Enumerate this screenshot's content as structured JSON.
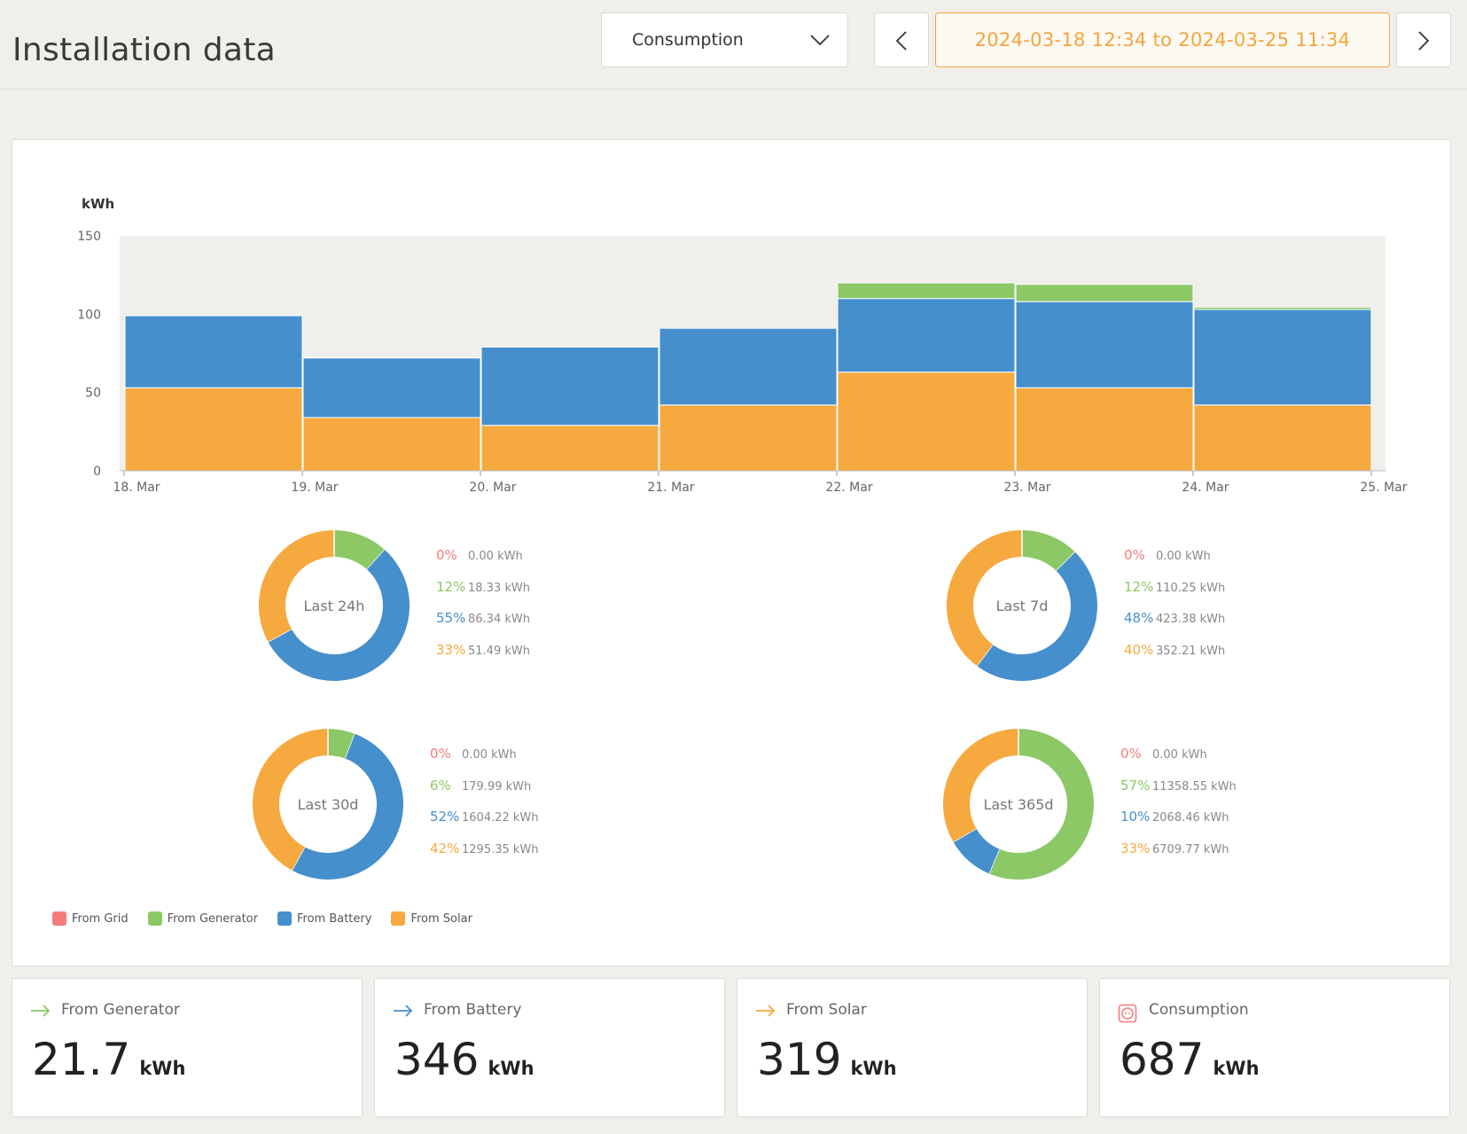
{
  "header": {
    "title": "Installation data",
    "select_label": "Consumption",
    "date_range": "2024-03-18 12:34 to 2024-03-25 11:34"
  },
  "colors": {
    "grid": "#f47c7c",
    "generator": "#8cc866",
    "battery": "#468fcd",
    "solar": "#f6a93f"
  },
  "chart_data": {
    "type": "bar",
    "stacked": true,
    "y_unit": "kWh",
    "ylim": [
      0,
      150
    ],
    "y_ticks": [
      "0",
      "50",
      "100",
      "150"
    ],
    "x_ticks": [
      "18. Mar",
      "19. Mar",
      "20. Mar",
      "21. Mar",
      "22. Mar",
      "23. Mar",
      "24. Mar",
      "25. Mar"
    ],
    "categories": [
      "18. Mar",
      "19. Mar",
      "20. Mar",
      "21. Mar",
      "22. Mar",
      "23. Mar",
      "24. Mar"
    ],
    "series": [
      {
        "name": "From Solar",
        "color_key": "solar",
        "values": [
          53,
          34,
          29,
          42,
          63,
          53,
          42
        ]
      },
      {
        "name": "From Battery",
        "color_key": "battery",
        "values": [
          46,
          38,
          50,
          49,
          47,
          55,
          61
        ]
      },
      {
        "name": "From Generator",
        "color_key": "generator",
        "values": [
          0,
          0,
          0,
          0,
          10,
          11,
          1.5
        ]
      },
      {
        "name": "From Grid",
        "color_key": "grid",
        "values": [
          0,
          0,
          0,
          0,
          0,
          0,
          0
        ]
      }
    ],
    "grid": false
  },
  "donuts": [
    {
      "label": "Last 24h",
      "stats": [
        {
          "key": "grid",
          "pct": "0%",
          "kwh": "0.00 kWh",
          "value": 0
        },
        {
          "key": "generator",
          "pct": "12%",
          "kwh": "18.33 kWh",
          "value": 18.33
        },
        {
          "key": "battery",
          "pct": "55%",
          "kwh": "86.34 kWh",
          "value": 86.34
        },
        {
          "key": "solar",
          "pct": "33%",
          "kwh": "51.49 kWh",
          "value": 51.49
        }
      ]
    },
    {
      "label": "Last 7d",
      "stats": [
        {
          "key": "grid",
          "pct": "0%",
          "kwh": "0.00 kWh",
          "value": 0
        },
        {
          "key": "generator",
          "pct": "12%",
          "kwh": "110.25 kWh",
          "value": 110.25
        },
        {
          "key": "battery",
          "pct": "48%",
          "kwh": "423.38 kWh",
          "value": 423.38
        },
        {
          "key": "solar",
          "pct": "40%",
          "kwh": "352.21 kWh",
          "value": 352.21
        }
      ]
    },
    {
      "label": "Last 30d",
      "stats": [
        {
          "key": "grid",
          "pct": "0%",
          "kwh": "0.00 kWh",
          "value": 0
        },
        {
          "key": "generator",
          "pct": "6%",
          "kwh": "179.99 kWh",
          "value": 179.99
        },
        {
          "key": "battery",
          "pct": "52%",
          "kwh": "1604.22 kWh",
          "value": 1604.22
        },
        {
          "key": "solar",
          "pct": "42%",
          "kwh": "1295.35 kWh",
          "value": 1295.35
        }
      ]
    },
    {
      "label": "Last 365d",
      "stats": [
        {
          "key": "grid",
          "pct": "0%",
          "kwh": "0.00 kWh",
          "value": 0
        },
        {
          "key": "generator",
          "pct": "57%",
          "kwh": "11358.55 kWh",
          "value": 11358.55
        },
        {
          "key": "battery",
          "pct": "10%",
          "kwh": "2068.46 kWh",
          "value": 2068.46
        },
        {
          "key": "solar",
          "pct": "33%",
          "kwh": "6709.77 kWh",
          "value": 6709.77
        }
      ]
    }
  ],
  "legend": [
    {
      "label": "From Grid",
      "key": "grid"
    },
    {
      "label": "From Generator",
      "key": "generator"
    },
    {
      "label": "From Battery",
      "key": "battery"
    },
    {
      "label": "From Solar",
      "key": "solar"
    }
  ],
  "cards": [
    {
      "title": "From Generator",
      "value": "21.7",
      "unit": "kWh",
      "icon": "arrow-right-icon",
      "key": "generator"
    },
    {
      "title": "From Battery",
      "value": "346",
      "unit": "kWh",
      "icon": "arrow-right-icon",
      "key": "battery"
    },
    {
      "title": "From Solar",
      "value": "319",
      "unit": "kWh",
      "icon": "arrow-right-icon",
      "key": "solar"
    },
    {
      "title": "Consumption",
      "value": "687",
      "unit": "kWh",
      "icon": "power-socket-icon",
      "key": "grid"
    }
  ]
}
